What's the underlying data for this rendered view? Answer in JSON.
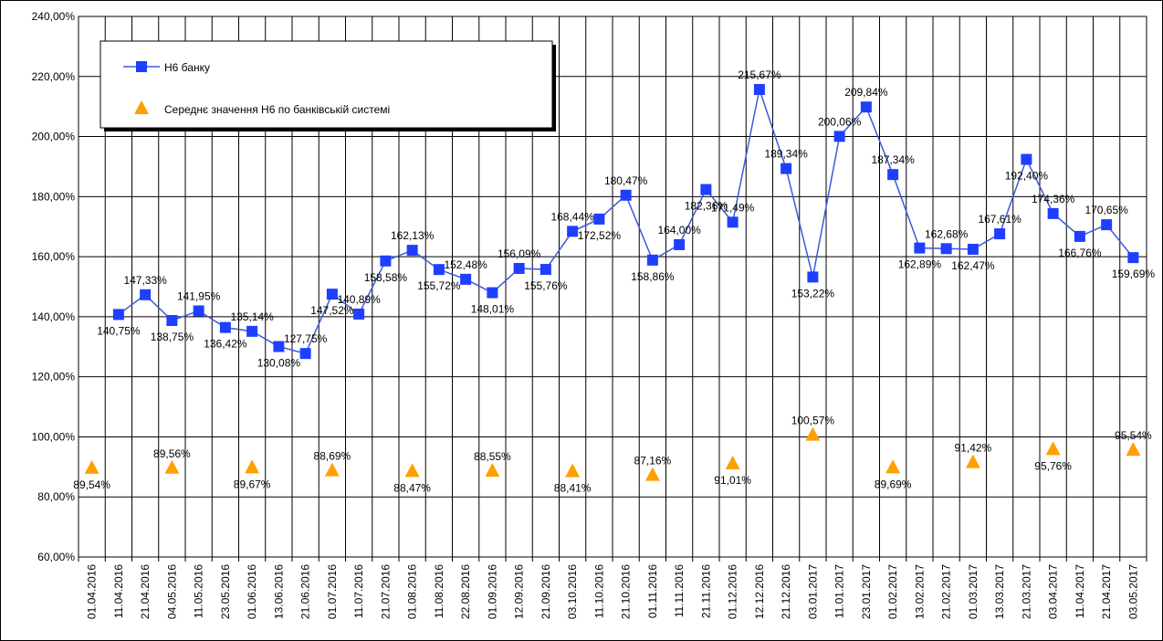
{
  "chart_data": {
    "type": "line",
    "categories": [
      "01.04.2016",
      "11.04.2016",
      "21.04.2016",
      "04.05.2016",
      "11.05.2016",
      "23.05.2016",
      "01.06.2016",
      "13.06.2016",
      "21.06.2016",
      "01.07.2016",
      "11.07.2016",
      "21.07.2016",
      "01.08.2016",
      "11.08.2016",
      "22.08.2016",
      "01.09.2016",
      "12.09.2016",
      "21.09.2016",
      "03.10.2016",
      "11.10.2016",
      "21.10.2016",
      "01.11.2016",
      "11.11.2016",
      "21.11.2016",
      "01.12.2016",
      "12.12.2016",
      "21.12.2016",
      "03.01.2017",
      "11.01.2017",
      "23.01.2017",
      "01.02.2017",
      "13.02.2017",
      "21.02.2017",
      "01.03.2017",
      "13.03.2017",
      "21.03.2017",
      "03.04.2017",
      "11.04.2017",
      "21.04.2017",
      "03.05.2017"
    ],
    "series": [
      {
        "name": "Н6 банку",
        "color": "#1f3fff",
        "line_color": "#3a5bd9",
        "marker": "square",
        "values": [
          null,
          140.75,
          147.33,
          138.75,
          141.95,
          136.42,
          135.14,
          130.08,
          127.75,
          147.52,
          140.89,
          158.58,
          162.13,
          155.72,
          152.48,
          148.01,
          156.09,
          155.76,
          168.44,
          172.52,
          180.47,
          158.86,
          164.0,
          182.36,
          171.49,
          215.67,
          189.34,
          153.22,
          200.06,
          209.84,
          187.34,
          162.89,
          162.68,
          162.47,
          167.61,
          192.4,
          174.36,
          166.76,
          170.65,
          159.69
        ],
        "value_labels": [
          null,
          "140,75%",
          "147,33%",
          "138,75%",
          "141,95%",
          "136,42%",
          "135,14%",
          "130,08%",
          "127,75%",
          "147,52%",
          "140,89%",
          "158,58%",
          "162,13%",
          "155,72%",
          "152,48%",
          "148,01%",
          "156,09%",
          "155,76%",
          "168,44%",
          "172,52%",
          "180,47%",
          "158,86%",
          "164,00%",
          "182,36%",
          "171,49%",
          "215,67%",
          "189,34%",
          "153,22%",
          "200,06%",
          "209,84%",
          "187,34%",
          "162,89%",
          "162,68%",
          "162,47%",
          "167,61%",
          "192,40%",
          "174,36%",
          "166,76%",
          "170,65%",
          "159,69%"
        ]
      },
      {
        "name": "Середнє значення Н6 по банківській системі",
        "color": "#ffa000",
        "marker": "triangle",
        "values": [
          89.54,
          null,
          null,
          89.56,
          null,
          null,
          89.67,
          null,
          null,
          88.69,
          null,
          null,
          88.47,
          null,
          null,
          88.55,
          null,
          null,
          88.41,
          null,
          null,
          87.16,
          null,
          null,
          91.01,
          null,
          null,
          100.57,
          null,
          null,
          89.69,
          null,
          null,
          91.42,
          null,
          null,
          95.76,
          null,
          null,
          95.54
        ],
        "value_labels": [
          "89,54%",
          null,
          null,
          "89,56%",
          null,
          null,
          "89,67%",
          null,
          null,
          "88,69%",
          null,
          null,
          "88,47%",
          null,
          null,
          "88,55%",
          null,
          null,
          "88,41%",
          null,
          null,
          "87,16%",
          null,
          null,
          "91,01%",
          null,
          null,
          "100,57%",
          null,
          null,
          "89,69%",
          null,
          null,
          "91,42%",
          null,
          null,
          "95,76%",
          null,
          null,
          "95,54%"
        ]
      }
    ],
    "ylim": [
      60,
      240
    ],
    "yticks": [
      {
        "value": 60,
        "label": "60,00%"
      },
      {
        "value": 80,
        "label": "80,00%"
      },
      {
        "value": 100,
        "label": "100,00%"
      },
      {
        "value": 120,
        "label": "120,00%"
      },
      {
        "value": 140,
        "label": "140,00%"
      },
      {
        "value": 160,
        "label": "160,00%"
      },
      {
        "value": 180,
        "label": "180,00%"
      },
      {
        "value": 200,
        "label": "200,00%"
      },
      {
        "value": 220,
        "label": "220,00%"
      },
      {
        "value": 240,
        "label": "240,00%"
      }
    ],
    "grid": true,
    "legend": "top-left"
  }
}
